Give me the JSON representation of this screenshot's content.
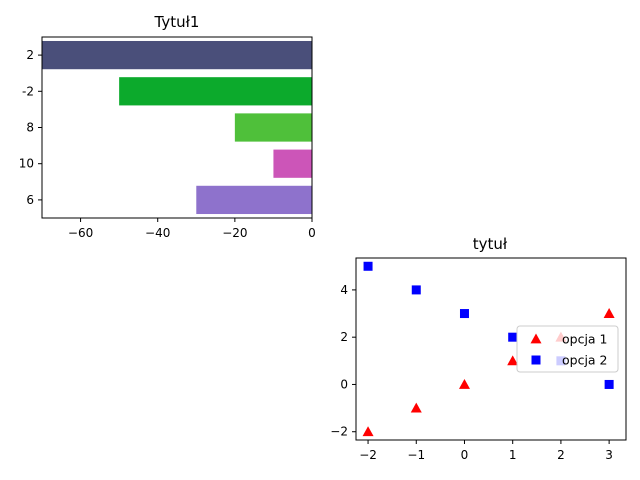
{
  "chart_data": [
    {
      "type": "bar",
      "orientation": "horizontal",
      "title": "Tytuł1",
      "categories": [
        "2",
        "-2",
        "8",
        "10",
        "6"
      ],
      "values": [
        -70,
        -50,
        -20,
        -10,
        -30
      ],
      "colors": [
        "#4a4f7a",
        "#0caa2c",
        "#4fc03a",
        "#cc55b8",
        "#8e72cc"
      ],
      "xlim": [
        -70,
        0
      ],
      "xticks": [
        -60,
        -40,
        -20,
        0
      ],
      "xtick_labels": [
        "−60",
        "−40",
        "−20",
        "0"
      ],
      "xlabel": "",
      "ylabel": ""
    },
    {
      "type": "scatter",
      "title": "tytuł",
      "series": [
        {
          "name": "opcja 1",
          "marker": "triangle",
          "color": "#ff0000",
          "x": [
            -2,
            -1,
            0,
            1,
            2,
            3
          ],
          "y": [
            -2,
            -1,
            0,
            1,
            2,
            3
          ]
        },
        {
          "name": "opcja 2",
          "marker": "square",
          "color": "#0000ff",
          "x": [
            -2,
            -1,
            0,
            1,
            2,
            3
          ],
          "y": [
            5,
            4,
            3,
            2,
            1,
            0
          ]
        }
      ],
      "xlim": [
        -2.25,
        3.35
      ],
      "ylim": [
        -2.35,
        5.35
      ],
      "xticks": [
        -2,
        -1,
        0,
        1,
        2,
        3
      ],
      "xtick_labels": [
        "−2",
        "−1",
        "0",
        "1",
        "2",
        "3"
      ],
      "yticks": [
        -2,
        0,
        2,
        4
      ],
      "ytick_labels": [
        "−2",
        "0",
        "2",
        "4"
      ],
      "legend": "center-right",
      "xlabel": "",
      "ylabel": ""
    }
  ]
}
